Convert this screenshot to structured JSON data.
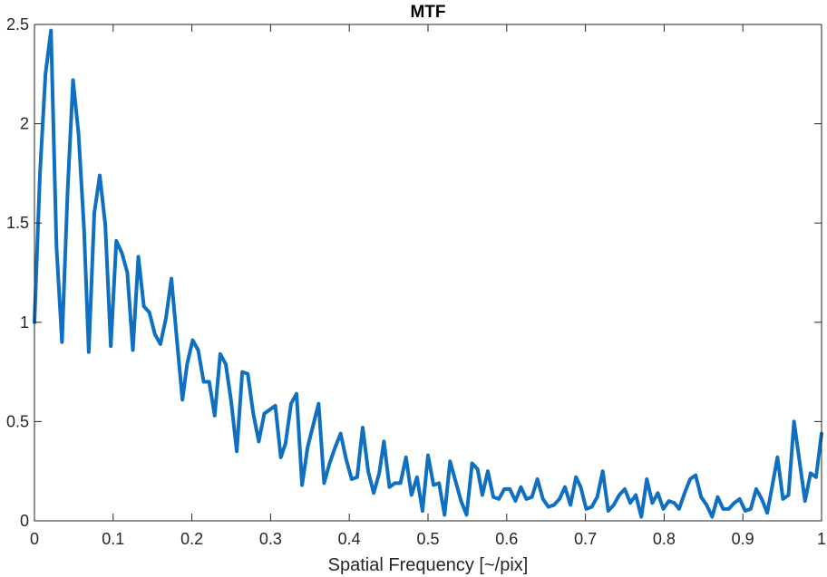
{
  "chart_data": {
    "type": "line",
    "title": "MTF",
    "xlabel": "Spatial Frequency [~/pix]",
    "ylabel": "",
    "xlim": [
      0,
      1
    ],
    "ylim": [
      0,
      2.5
    ],
    "xticks": [
      0,
      0.1,
      0.2,
      0.3,
      0.4,
      0.5,
      0.6,
      0.7,
      0.8,
      0.9,
      1
    ],
    "xtick_labels": [
      "0",
      "0.1",
      "0.2",
      "0.3",
      "0.4",
      "0.5",
      "0.6",
      "0.7",
      "0.8",
      "0.9",
      "1"
    ],
    "yticks": [
      0,
      0.5,
      1,
      1.5,
      2,
      2.5
    ],
    "ytick_labels": [
      "0",
      "0.5",
      "1",
      "1.5",
      "2",
      "2.5"
    ],
    "grid": false,
    "line_color": "#0f6fc0",
    "series": [
      {
        "name": "",
        "x": [
          0,
          0.007,
          0.014,
          0.021,
          0.028,
          0.035,
          0.042,
          0.049,
          0.056,
          0.063,
          0.069,
          0.076,
          0.083,
          0.09,
          0.097,
          0.104,
          0.111,
          0.118,
          0.125,
          0.132,
          0.139,
          0.146,
          0.153,
          0.16,
          0.167,
          0.174,
          0.181,
          0.188,
          0.194,
          0.201,
          0.208,
          0.215,
          0.222,
          0.229,
          0.236,
          0.243,
          0.25,
          0.257,
          0.264,
          0.271,
          0.278,
          0.285,
          0.292,
          0.299,
          0.306,
          0.313,
          0.319,
          0.326,
          0.333,
          0.34,
          0.347,
          0.354,
          0.361,
          0.368,
          0.375,
          0.382,
          0.389,
          0.396,
          0.403,
          0.41,
          0.417,
          0.424,
          0.431,
          0.438,
          0.444,
          0.451,
          0.458,
          0.465,
          0.472,
          0.479,
          0.486,
          0.493,
          0.5,
          0.507,
          0.514,
          0.521,
          0.528,
          0.535,
          0.542,
          0.549,
          0.556,
          0.563,
          0.569,
          0.576,
          0.583,
          0.59,
          0.597,
          0.604,
          0.611,
          0.618,
          0.625,
          0.632,
          0.639,
          0.646,
          0.653,
          0.66,
          0.667,
          0.674,
          0.681,
          0.688,
          0.694,
          0.701,
          0.708,
          0.715,
          0.722,
          0.729,
          0.736,
          0.743,
          0.75,
          0.757,
          0.764,
          0.771,
          0.778,
          0.785,
          0.792,
          0.799,
          0.806,
          0.813,
          0.819,
          0.826,
          0.833,
          0.84,
          0.847,
          0.854,
          0.861,
          0.868,
          0.875,
          0.882,
          0.889,
          0.896,
          0.903,
          0.91,
          0.917,
          0.924,
          0.931,
          0.938,
          0.944,
          0.951,
          0.958,
          0.965,
          0.972,
          0.979,
          0.986,
          0.993,
          1
        ],
        "y": [
          1.0,
          1.75,
          2.25,
          2.47,
          1.38,
          0.9,
          1.65,
          2.22,
          1.95,
          1.47,
          0.85,
          1.55,
          1.74,
          1.49,
          0.88,
          1.41,
          1.35,
          1.25,
          0.86,
          1.33,
          1.08,
          1.05,
          0.94,
          0.89,
          1.02,
          1.22,
          0.91,
          0.61,
          0.79,
          0.91,
          0.86,
          0.7,
          0.7,
          0.53,
          0.84,
          0.79,
          0.6,
          0.35,
          0.75,
          0.74,
          0.54,
          0.4,
          0.54,
          0.56,
          0.58,
          0.32,
          0.39,
          0.59,
          0.64,
          0.18,
          0.37,
          0.48,
          0.59,
          0.19,
          0.29,
          0.37,
          0.44,
          0.31,
          0.21,
          0.22,
          0.47,
          0.25,
          0.14,
          0.24,
          0.4,
          0.17,
          0.19,
          0.19,
          0.32,
          0.13,
          0.22,
          0.05,
          0.33,
          0.18,
          0.19,
          0.03,
          0.3,
          0.2,
          0.1,
          0.03,
          0.29,
          0.26,
          0.13,
          0.25,
          0.12,
          0.11,
          0.16,
          0.16,
          0.1,
          0.17,
          0.11,
          0.12,
          0.21,
          0.11,
          0.07,
          0.08,
          0.11,
          0.17,
          0.08,
          0.22,
          0.17,
          0.06,
          0.07,
          0.12,
          0.25,
          0.05,
          0.08,
          0.13,
          0.16,
          0.09,
          0.13,
          0.02,
          0.21,
          0.09,
          0.14,
          0.06,
          0.1,
          0.09,
          0.06,
          0.14,
          0.21,
          0.23,
          0.12,
          0.08,
          0.02,
          0.12,
          0.06,
          0.06,
          0.09,
          0.11,
          0.05,
          0.06,
          0.16,
          0.11,
          0.04,
          0.19,
          0.32,
          0.11,
          0.13,
          0.5,
          0.3,
          0.1,
          0.24,
          0.22,
          0.44
        ]
      }
    ]
  }
}
